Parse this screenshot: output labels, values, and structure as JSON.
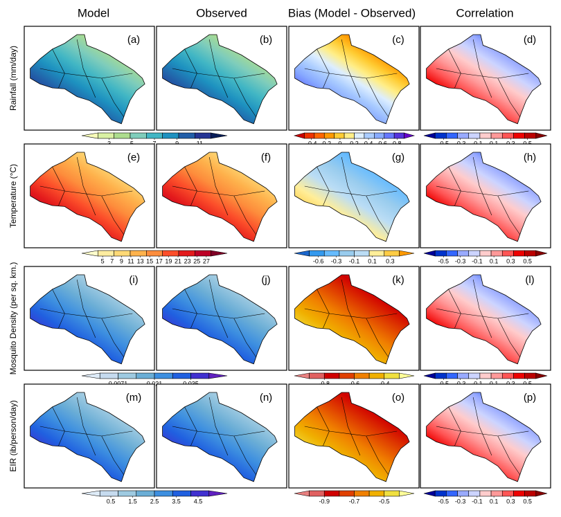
{
  "columns": [
    "Model",
    "Observed",
    "Bias (Model - Observed)",
    "Correlation"
  ],
  "rows": [
    {
      "label": "Rainfall (mm/day)",
      "panels": [
        "(a)",
        "(b)",
        "(c)",
        "(d)"
      ],
      "colorbars": [
        {
          "colors": [
            "#f7fcb9",
            "#d9f0a3",
            "#addd8e",
            "#7fcdbb",
            "#41b6c4",
            "#1d91c0",
            "#225ea8",
            "#253494",
            "#081d58"
          ],
          "ticks": [
            3,
            5,
            7,
            9,
            11
          ]
        },
        {
          "colors": [
            "#cc0000",
            "#ee3300",
            "#ff6600",
            "#ff9900",
            "#ffcc33",
            "#ffee88",
            "#ddeeff",
            "#aaccff",
            "#88aaff",
            "#6677ff",
            "#5533dd",
            "#6600cc"
          ],
          "ticks": [
            -0.4,
            -0.2,
            0,
            0.2,
            0.4,
            0.6,
            0.8
          ]
        },
        {
          "colors": [
            "#000099",
            "#0033cc",
            "#3366ff",
            "#99aaff",
            "#ccd4ff",
            "#ffcccc",
            "#ff9999",
            "#ff5555",
            "#ee0000",
            "#bb0000",
            "#880000"
          ],
          "ticks": [
            -0.5,
            -0.3,
            -0.1,
            0.1,
            0.3,
            0.5
          ]
        }
      ]
    },
    {
      "label": "Temperature (°C)",
      "panels": [
        "(e)",
        "(f)",
        "(g)",
        "(h)"
      ],
      "colorbars": [
        {
          "colors": [
            "#ffffcc",
            "#ffeda0",
            "#fed976",
            "#feb24c",
            "#fd8d3c",
            "#fc4e2a",
            "#e31a1c",
            "#bd0026",
            "#800026"
          ],
          "ticks": [
            5,
            7,
            9,
            11,
            13,
            15,
            17,
            19,
            21,
            23,
            25,
            27
          ]
        },
        {
          "colors": [
            "#1a66cc",
            "#3399ee",
            "#66bbff",
            "#99ccee",
            "#bbddf5",
            "#ffee99",
            "#ffcc44",
            "#ff9900"
          ],
          "ticks": [
            -0.6,
            -0.3,
            -0.1,
            0.1,
            0.3
          ]
        },
        {
          "colors": [
            "#000099",
            "#0033cc",
            "#3366ff",
            "#99aaff",
            "#ccd4ff",
            "#ffcccc",
            "#ff9999",
            "#ff5555",
            "#ee0000",
            "#bb0000",
            "#880000"
          ],
          "ticks": [
            -0.5,
            -0.3,
            -0.1,
            0.1,
            0.3,
            0.5
          ]
        }
      ]
    },
    {
      "label": "Mosquito Density (per sq. km.)",
      "panels": [
        "(i)",
        "(j)",
        "(k)",
        "(l)"
      ],
      "colorbars": [
        {
          "colors": [
            "#deebf7",
            "#c6dbef",
            "#9ecae1",
            "#6baed6",
            "#3d8fe0",
            "#2060e0",
            "#4030d0",
            "#6020c0"
          ],
          "ticks": [
            0.0071,
            0.021,
            0.035
          ]
        },
        {
          "colors": [
            "#e88080",
            "#e06060",
            "#d00000",
            "#e04000",
            "#f08000",
            "#f0b000",
            "#f0e040",
            "#ffff99"
          ],
          "ticks": [
            -0.8,
            -0.6,
            -0.4
          ]
        },
        {
          "colors": [
            "#000099",
            "#0033cc",
            "#3366ff",
            "#99aaff",
            "#ccd4ff",
            "#ffcccc",
            "#ff9999",
            "#ff5555",
            "#ee0000",
            "#bb0000",
            "#880000"
          ],
          "ticks": [
            -0.5,
            -0.3,
            -0.1,
            0.1,
            0.3,
            0.5
          ]
        }
      ]
    },
    {
      "label": "EIR (ib/person/day)",
      "panels": [
        "(m)",
        "(n)",
        "(o)",
        "(p)"
      ],
      "colorbars": [
        {
          "colors": [
            "#deebf7",
            "#c6dbef",
            "#9ecae1",
            "#6baed6",
            "#3d8fe0",
            "#2060e0",
            "#4030d0",
            "#6020c0"
          ],
          "ticks": [
            0.5,
            1.5,
            2.5,
            3.5,
            4.5
          ]
        },
        {
          "colors": [
            "#e88080",
            "#e06060",
            "#d00000",
            "#e04000",
            "#f08000",
            "#f0b000",
            "#f0e040",
            "#ffff99"
          ],
          "ticks": [
            -0.9,
            -0.7,
            -0.5
          ]
        },
        {
          "colors": [
            "#000099",
            "#0033cc",
            "#3366ff",
            "#99aaff",
            "#ccd4ff",
            "#ffcccc",
            "#ff9999",
            "#ff5555",
            "#ee0000",
            "#bb0000",
            "#880000"
          ],
          "ticks": [
            -0.5,
            -0.3,
            -0.1,
            0.1,
            0.3,
            0.5
          ]
        }
      ]
    }
  ]
}
